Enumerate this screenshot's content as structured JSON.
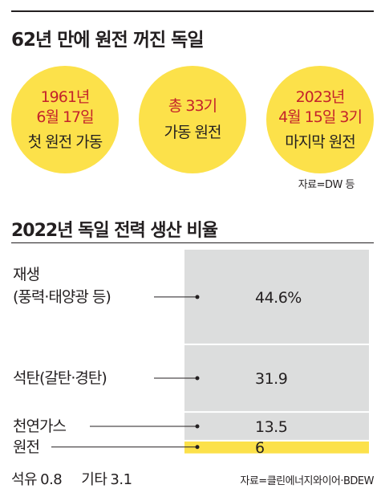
{
  "headline": "62년 만에 원전 꺼진 독일",
  "circles": [
    {
      "red_lines": [
        "1961년",
        "6월 17일"
      ],
      "black_line": "첫 원전 가동"
    },
    {
      "red_lines": [
        "총 33기"
      ],
      "black_line": "가동 원전"
    },
    {
      "red_lines": [
        "2023년",
        "4월 15일 3기"
      ],
      "black_line": "마지막 원전"
    }
  ],
  "source_top": "자료=DW 등",
  "colors": {
    "accent_yellow": "#fce14a",
    "accent_red": "#c4232b",
    "bar_gray": "#dcdddd",
    "text": "#231f20"
  },
  "chart_data": {
    "type": "bar",
    "title": "2022년 독일 전력 생산 비율",
    "unit": "%",
    "categories": [
      "재생 (풍력·태양광 등)",
      "석탄(갈탄·경탄)",
      "천연가스",
      "원전",
      "석유",
      "기타"
    ],
    "values": [
      44.6,
      31.9,
      13.5,
      6,
      0.8,
      3.1
    ],
    "labels": [
      {
        "lines": [
          "재생",
          "(풍력·태양광 등)"
        ],
        "value_text": "44.6%"
      },
      {
        "lines": [
          "석탄(갈탄·경탄)"
        ],
        "value_text": "31.9"
      },
      {
        "lines": [
          "천연가스"
        ],
        "value_text": "13.5"
      },
      {
        "lines": [
          "원전"
        ],
        "value_text": "6",
        "highlight": true
      }
    ],
    "footer_items": [
      {
        "label": "석유",
        "value": "0.8"
      },
      {
        "label": "기타",
        "value": "3.1"
      }
    ]
  },
  "source_bottom": "자료=클린에너지와이어·BDEW"
}
